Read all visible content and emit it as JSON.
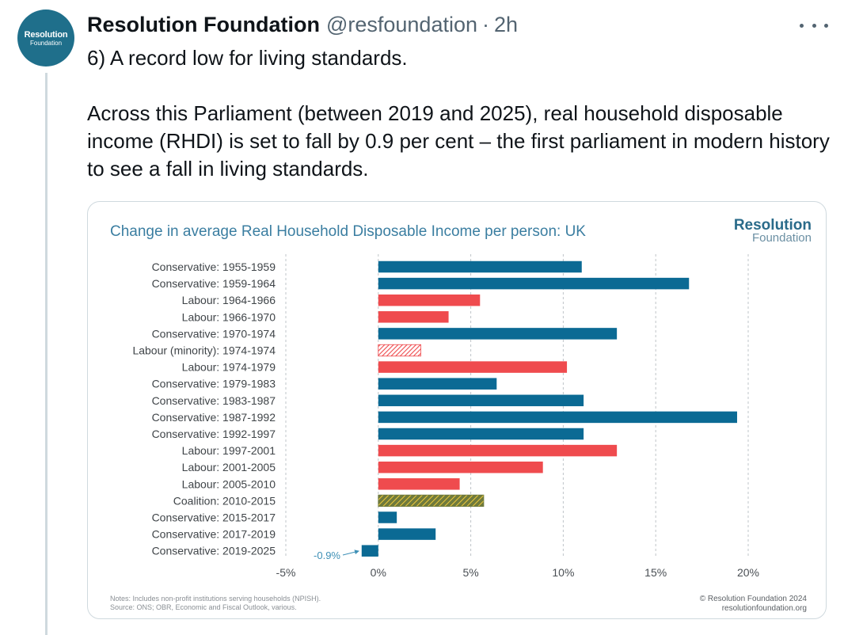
{
  "tweet": {
    "author_name": "Resolution Foundation",
    "handle": "@resfoundation",
    "separator": "·",
    "time": "2h",
    "avatar_line1": "Resolution",
    "avatar_line2": "Foundation",
    "text_line1": "6) A record low for living standards.",
    "text_para2": "Across this Parliament (between 2019 and 2025), real household disposable income (RHDI) is set to fall by 0.9 per cent – the first parliament in modern history to see a fall in living standards."
  },
  "chart_data": {
    "type": "bar",
    "orientation": "horizontal",
    "title": "Change in average Real Household Disposable Income per person: UK",
    "categories": [
      "Conservative: 1955-1959",
      "Conservative: 1959-1964",
      "Labour: 1964-1966",
      "Labour: 1966-1970",
      "Conservative: 1970-1974",
      "Labour (minority): 1974-1974",
      "Labour: 1974-1979",
      "Conservative: 1979-1983",
      "Conservative: 1983-1987",
      "Conservative: 1987-1992",
      "Conservative: 1992-1997",
      "Labour: 1997-2001",
      "Labour: 2001-2005",
      "Labour: 2005-2010",
      "Coalition: 2010-2015",
      "Conservative: 2015-2017",
      "Conservative: 2017-2019",
      "Conservative: 2019-2025"
    ],
    "values": [
      11.0,
      16.8,
      5.5,
      3.8,
      12.9,
      2.3,
      10.2,
      6.4,
      11.1,
      19.4,
      11.1,
      12.9,
      8.9,
      4.4,
      5.7,
      1.0,
      3.1,
      -0.9
    ],
    "party": [
      "con",
      "con",
      "lab",
      "lab",
      "con",
      "lab-minority",
      "lab",
      "con",
      "con",
      "con",
      "con",
      "lab",
      "lab",
      "lab",
      "coalition",
      "con",
      "con",
      "con"
    ],
    "xlim": [
      -5,
      20
    ],
    "xticks": [
      "-5%",
      "0%",
      "5%",
      "10%",
      "15%",
      "20%"
    ],
    "xtick_values": [
      -5,
      0,
      5,
      10,
      15,
      20
    ],
    "annotation": "-0.9%",
    "grid": "vertical-dashed",
    "colors": {
      "con": "#0b6a94",
      "lab": "#ef4b4e",
      "coalition_fill": "#6f7a3c",
      "coalition_stripe": "#f0c93a",
      "title": "#3b7ea1",
      "annotation": "#3e90b6"
    },
    "logo_line1": "Resolution",
    "logo_line2": "Foundation",
    "notes_line1": "Notes: Includes non-profit institutions serving households (NPISH).",
    "notes_line2": "Source: ONS; OBR, Economic and Fiscal Outlook, various.",
    "copyright_line1": "© Resolution Foundation 2024",
    "copyright_line2": "resolutionfoundation.org"
  }
}
